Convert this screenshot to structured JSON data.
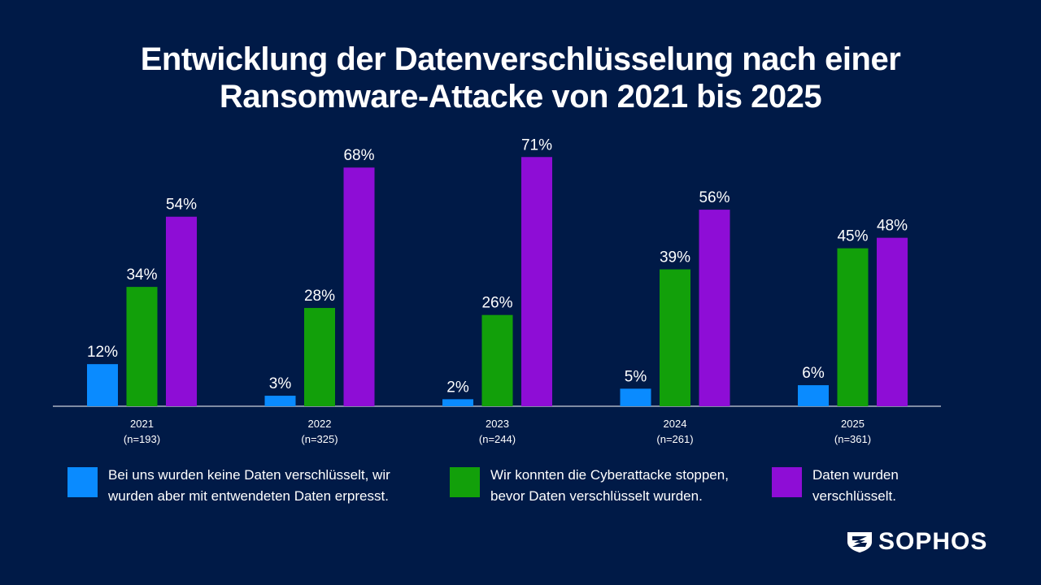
{
  "title": {
    "line1": "Entwicklung der Datenverschlüsselung nach einer",
    "line2": "Ransomware-Attacke von 2021 bis 2025"
  },
  "chart_data": {
    "type": "bar",
    "title": "Entwicklung der Datenverschlüsselung nach einer Ransomware-Attacke von 2021 bis 2025",
    "xlabel": "",
    "ylabel": "",
    "ylim": [
      0,
      75
    ],
    "grid": false,
    "legend_position": "bottom",
    "categories": [
      "2021",
      "2022",
      "2023",
      "2024",
      "2025"
    ],
    "category_sublabels": [
      "(n=193)",
      "(n=325)",
      "(n=244)",
      "(n=261)",
      "(n=361)"
    ],
    "value_suffix": "%",
    "series": [
      {
        "name": "Bei uns wurden keine Daten verschlüsselt, wir wurden aber mit entwendeten Daten erpresst.",
        "color": "#0a8bff",
        "values": [
          12,
          3,
          2,
          5,
          6
        ]
      },
      {
        "name": "Wir konnten die Cyberattacke stoppen, bevor Daten verschlüsselt wurden.",
        "color": "#12a00a",
        "values": [
          34,
          28,
          26,
          39,
          45
        ]
      },
      {
        "name": "Daten wurden verschlüsselt.",
        "color": "#8e0dd6",
        "values": [
          54,
          68,
          71,
          56,
          48
        ]
      }
    ]
  },
  "legend": [
    {
      "text": "Bei uns wurden keine Daten verschlüsselt, wir\nwurden aber mit entwendeten Daten erpresst.",
      "color": "#0a8bff"
    },
    {
      "text": "Wir konnten die Cyberattacke stoppen,\nbevor Daten verschlüsselt wurden.",
      "color": "#12a00a"
    },
    {
      "text": "Daten wurden\nverschlüsselt.",
      "color": "#8e0dd6"
    }
  ],
  "logo": {
    "text": "SOPHOS",
    "icon": "sophos-shield-icon"
  },
  "colors": {
    "background": "#001a47",
    "axis": "#ffffff"
  }
}
